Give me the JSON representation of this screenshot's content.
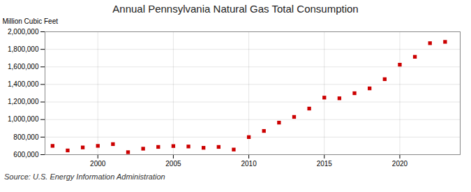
{
  "chart_data": {
    "type": "scatter",
    "title": "Annual Pennsylvania Natural Gas Total Consumption",
    "ylabel": "Million Cubic Feet",
    "annotation": "Source: U.S. Energy Information Administration",
    "x": [
      1997,
      1998,
      1999,
      2000,
      2001,
      2002,
      2003,
      2004,
      2005,
      2006,
      2007,
      2008,
      2009,
      2010,
      2011,
      2012,
      2013,
      2014,
      2015,
      2016,
      2017,
      2018,
      2019,
      2020,
      2021,
      2022,
      2023
    ],
    "values": [
      700000,
      648000,
      682000,
      700000,
      720000,
      628000,
      668000,
      688000,
      698000,
      693000,
      678000,
      688000,
      658000,
      800000,
      870000,
      965000,
      1030000,
      1125000,
      1250000,
      1242000,
      1300000,
      1355000,
      1460000,
      1625000,
      1715000,
      1870000,
      1885000
    ],
    "color": "#cc0000",
    "marker": "square",
    "xlim": [
      1996.5,
      2024
    ],
    "xticks": [
      2000,
      2005,
      2010,
      2015,
      2020
    ],
    "ylim": [
      600000,
      2000000
    ],
    "yticks": [
      {
        "value": 600000,
        "label": "600,000"
      },
      {
        "value": 800000,
        "label": "800,000"
      },
      {
        "value": 1000000,
        "label": "1,000,000"
      },
      {
        "value": 1200000,
        "label": "1,200,000"
      },
      {
        "value": 1400000,
        "label": "1,400,000"
      },
      {
        "value": 1600000,
        "label": "1,600,000"
      },
      {
        "value": 1800000,
        "label": "1,800,000"
      },
      {
        "value": 2000000,
        "label": "2,000,000"
      }
    ],
    "grid": true
  }
}
